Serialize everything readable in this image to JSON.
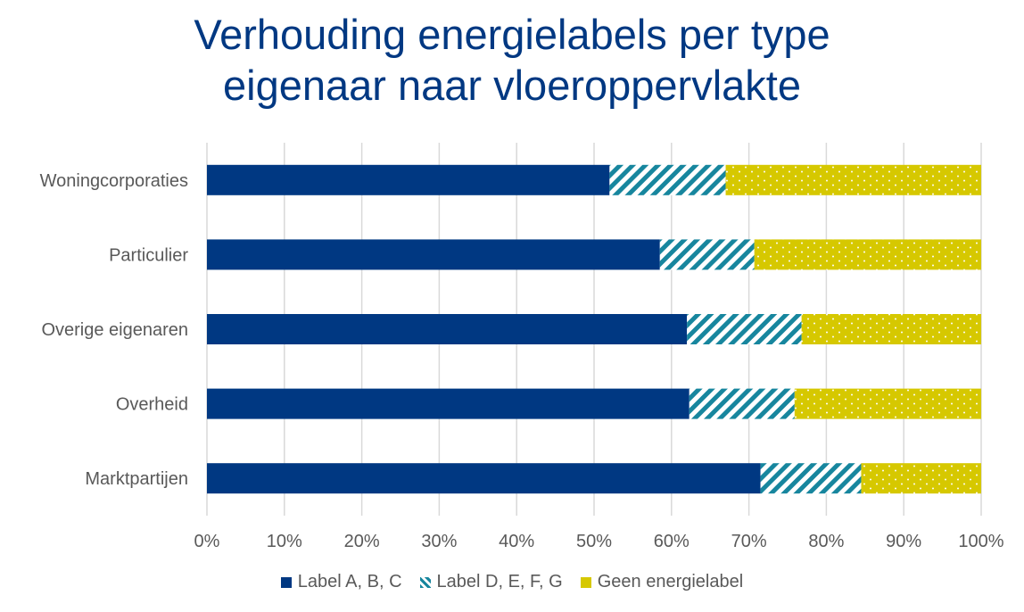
{
  "chart_data": {
    "type": "bar",
    "orientation": "horizontal",
    "stacked": "percent",
    "title_lines": [
      "Verhouding energielabels per type",
      "eigenaar naar vloeroppervlakte"
    ],
    "categories": [
      "Woningcorporaties",
      "Particulier",
      "Overige eigenaren",
      "Overheid",
      "Marktpartijen"
    ],
    "series": [
      {
        "name": "Label A, B, C",
        "color": "#003882",
        "pattern": "solid",
        "values": [
          52,
          58.5,
          62,
          62.3,
          71.5
        ]
      },
      {
        "name": "Label D, E, F, G",
        "color": "#17869e",
        "pattern": "diagonal-stripes",
        "values": [
          15,
          12.2,
          14.8,
          13.6,
          13
        ]
      },
      {
        "name": "Geen energielabel",
        "color": "#d6c800",
        "pattern": "dots",
        "values": [
          33,
          29.3,
          23.2,
          24.1,
          15.5
        ]
      }
    ],
    "x_ticks": [
      "0%",
      "10%",
      "20%",
      "30%",
      "40%",
      "50%",
      "60%",
      "70%",
      "80%",
      "90%",
      "100%"
    ],
    "xlim": [
      0,
      100
    ],
    "grid": "vertical",
    "legend_position": "bottom"
  }
}
